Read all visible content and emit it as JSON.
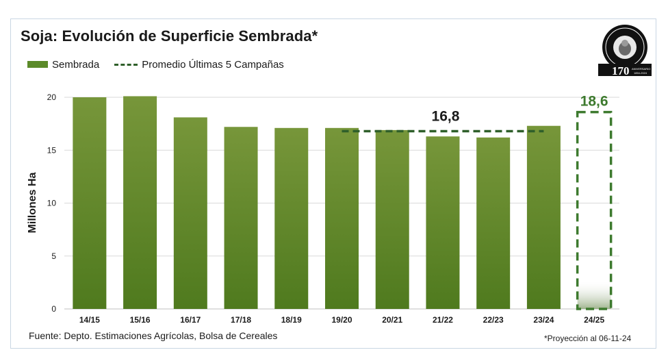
{
  "title": "Soja: Evolución de Superficie Sembrada*",
  "legend": {
    "bars": "Sembrada",
    "line": "Promedio Últimas 5 Campañas"
  },
  "logo": {
    "text_top": "Bolsa de Cereales",
    "number": "170",
    "text_small": "ANIVERSARIO 1854-2024"
  },
  "source": "Fuente: Depto. Estimaciones Agrícolas, Bolsa de Cereales",
  "note": "*Proyección al 06-11-24",
  "colors": {
    "bar_top": "#77963a",
    "bar_bottom": "#4f7a1e",
    "avg_line": "#2f5f2a",
    "projection": "#3d7a2e",
    "grid": "#d9d9d9"
  },
  "chart_data": {
    "type": "bar",
    "ylabel": "Millones Ha",
    "xlabel": "",
    "ylim": [
      0,
      20
    ],
    "yticks": [
      0,
      5,
      10,
      15,
      20
    ],
    "grid": true,
    "legend_position": "top-left",
    "categories": [
      "14/15",
      "15/16",
      "16/17",
      "17/18",
      "18/19",
      "19/20",
      "20/21",
      "21/22",
      "22/23",
      "23/24",
      "24/25"
    ],
    "series": [
      {
        "name": "Sembrada",
        "values": [
          20.0,
          20.1,
          18.1,
          17.2,
          17.1,
          17.1,
          16.9,
          16.3,
          16.2,
          17.3,
          null
        ]
      }
    ],
    "average": {
      "name": "Promedio Últimas 5 Campañas",
      "value": 16.8,
      "label": "16,8",
      "from": "19/20",
      "to": "23/24"
    },
    "projection": {
      "category": "24/25",
      "value": 18.6,
      "label": "18,6"
    }
  }
}
